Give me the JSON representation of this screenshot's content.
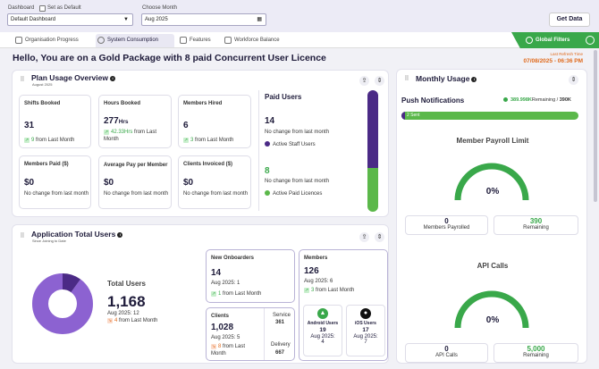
{
  "filters": {
    "dashboard_label": "Dashboard",
    "dashboard_value": "Default Dashboard",
    "set_default_label": "Set as Default",
    "month_label": "Choose Month",
    "month_value": "Aug 2025",
    "get_data_label": "Get Data"
  },
  "tabs": [
    {
      "label": "Organisation Progress"
    },
    {
      "label": "System Consumption"
    },
    {
      "label": "Features"
    },
    {
      "label": "Workforce Balance"
    }
  ],
  "global_filters_label": "Global Filters",
  "greeting": "Hello, You are on a Gold Package with 8 paid Concurrent User Licence",
  "refresh": {
    "label": "Last Refresh Time",
    "value": "07/08/2025 - 06:36 PM"
  },
  "plan_usage": {
    "title": "Plan Usage Overview",
    "subtitle": "August 2025",
    "cards": [
      {
        "title": "Shifts Booked",
        "value": "31",
        "unit": "",
        "change": "9",
        "change_suffix": "from Last Month",
        "trend": "up"
      },
      {
        "title": "Hours Booked",
        "value": "277",
        "unit": "Hrs",
        "change": "42.33Hrs",
        "change_suffix": "from Last Month",
        "trend": "up"
      },
      {
        "title": "Members Hired",
        "value": "6",
        "unit": "",
        "change": "3",
        "change_suffix": "from Last Month",
        "trend": "up"
      },
      {
        "title": "Members Paid ($)",
        "value": "$0",
        "unit": "",
        "change": "",
        "change_suffix": "No change from last month",
        "trend": "none"
      },
      {
        "title": "Average Pay per Member",
        "value": "$0",
        "unit": "",
        "change": "",
        "change_suffix": "No change from last month",
        "trend": "none"
      },
      {
        "title": "Clients Invoiced ($)",
        "value": "$0",
        "unit": "",
        "change": "",
        "change_suffix": "No change from last month",
        "trend": "none"
      }
    ],
    "paid_users": {
      "title": "Paid Users",
      "staff_value": "14",
      "staff_note": "No change from last month",
      "staff_label": "Active Staff Users",
      "licence_value": "8",
      "licence_note": "No change from last month",
      "licence_label": "Active Paid Licences",
      "staff_color": "#4b2a86",
      "licence_color": "#5bb84a",
      "licence_fraction": 0.36
    }
  },
  "app_users": {
    "title": "Application Total Users",
    "subtitle": "Since Joining to Date",
    "total_label": "Total Users",
    "total_value": "1,168",
    "total_month": "Aug 2025: 12",
    "total_change": "4",
    "total_change_suffix": "from Last Month",
    "donut_main_fraction": 0.9,
    "new_onboarders": {
      "title": "New Onboarders",
      "value": "14",
      "month": "Aug 2025: 1",
      "change": "1",
      "change_suffix": "from Last Month"
    },
    "clients": {
      "title": "Clients",
      "value": "1,028",
      "month": "Aug 2025: 5",
      "change": "8",
      "change_suffix": "from Last Month",
      "service_label": "Service",
      "service_value": "361",
      "delivery_label": "Delivery",
      "delivery_value": "667"
    },
    "members": {
      "title": "Members",
      "value": "126",
      "month": "Aug 2025: 6",
      "change": "3",
      "change_suffix": "from Last Month",
      "android_label": "Android Users",
      "android_value": "19",
      "android_month_label": "Aug 2025:",
      "android_month": "4",
      "ios_label": "iOS Users",
      "ios_value": "17",
      "ios_month_label": "Aug 2025:",
      "ios_month": "7"
    }
  },
  "monthly_usage": {
    "title": "Monthly Usage",
    "push": {
      "title": "Push Notifications",
      "remaining": "389.998K",
      "remaining_label": "Remaining",
      "total": "390K",
      "sent": "2 Sent",
      "sent_fraction": 0.02
    },
    "payroll": {
      "title": "Member Payroll Limit",
      "percent": "0%",
      "left_value": "0",
      "left_label": "Members Payrolled",
      "right_value": "390",
      "right_label": "Remaining"
    },
    "api": {
      "title": "API Calls",
      "percent": "0%",
      "left_value": "0",
      "left_label": "API Calls",
      "right_value": "5,000",
      "right_label": "Remaining"
    }
  },
  "colors": {
    "purple": "#4b2a86",
    "green": "#39a84a",
    "orange": "#e06a1c"
  }
}
